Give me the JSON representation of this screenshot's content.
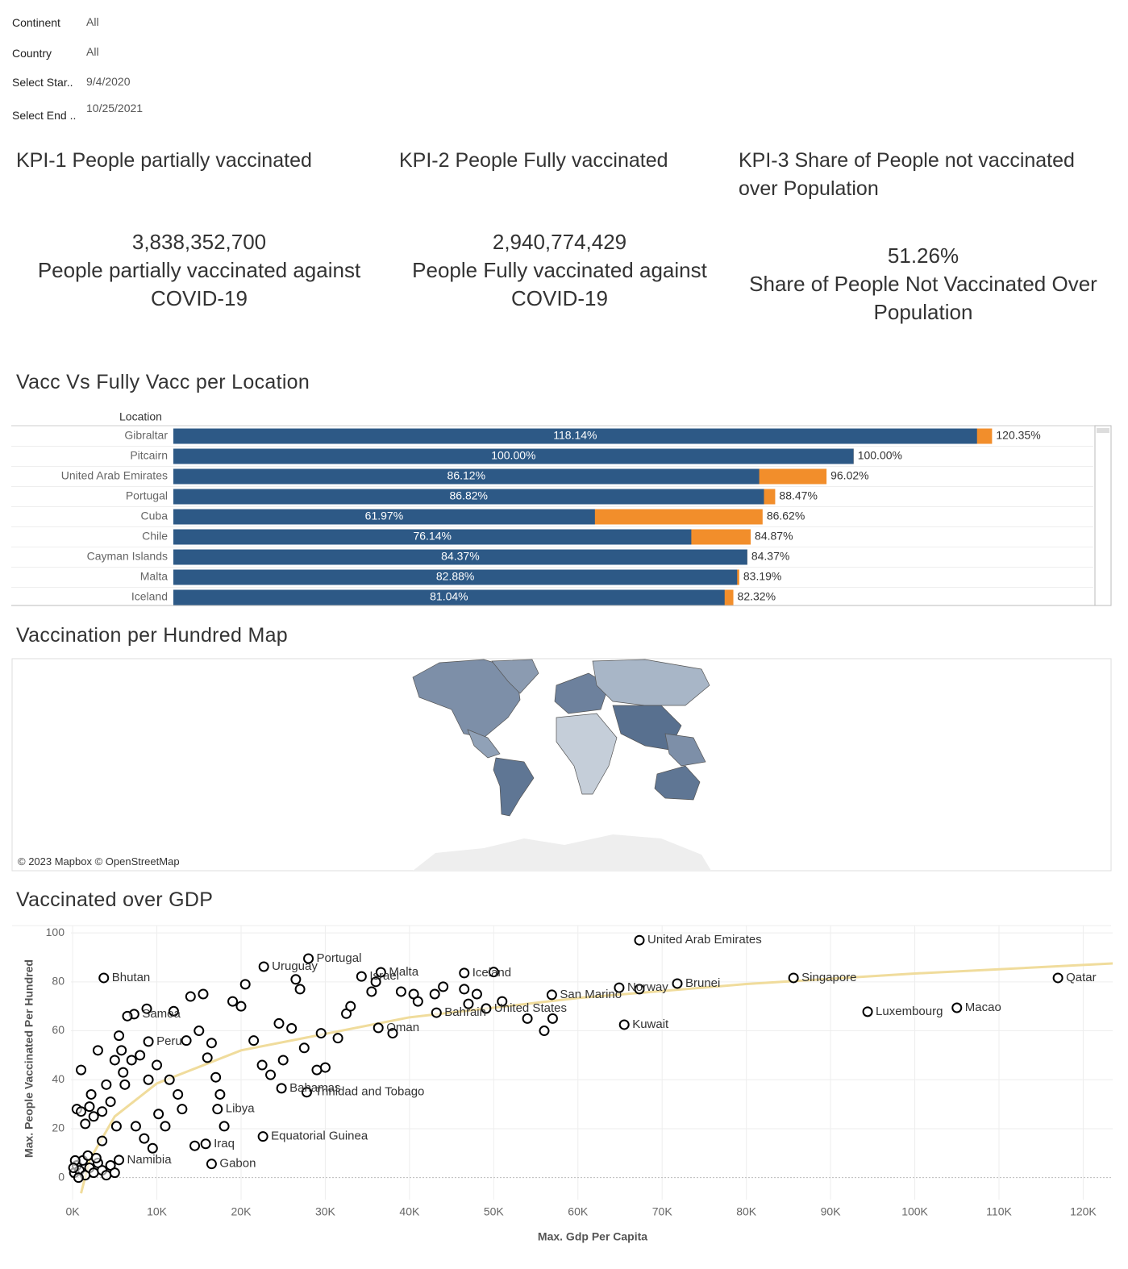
{
  "filters": [
    {
      "label": "Continent",
      "value": "All"
    },
    {
      "label": "Country",
      "value": "All"
    },
    {
      "label": "Select Star..",
      "value": "9/4/2020"
    },
    {
      "label": "Select End ..",
      "value": "10/25/2021"
    }
  ],
  "kpis": [
    {
      "title": "KPI-1 People partially vaccinated",
      "value": "3,838,352,700",
      "caption": "People partially vaccinated against COVID-19"
    },
    {
      "title": "KPI-2 People Fully vaccinated",
      "value": "2,940,774,429",
      "caption": "People Fully vaccinated against COVID-19"
    },
    {
      "title": "KPI-3 Share of People not vaccinated over Population",
      "value": "51.26%",
      "caption": "Share of People Not Vaccinated Over Population"
    }
  ],
  "map": {
    "title": "Vaccination per Hundred Map",
    "attribution": "© 2023 Mapbox © OpenStreetMap"
  },
  "chart_data": [
    {
      "type": "bar",
      "title": "Vacc Vs Fully Vacc per Location",
      "axis_header": "Location",
      "categories": [
        "Gibraltar",
        "Pitcairn",
        "United Arab Emirates",
        "Portugal",
        "Cuba",
        "Chile",
        "Cayman Islands",
        "Malta",
        "Iceland"
      ],
      "series": [
        {
          "color": "#f28e2b",
          "values": [
            120.35,
            100.0,
            96.02,
            88.47,
            86.62,
            84.87,
            84.37,
            83.19,
            82.32
          ],
          "value_labels": [
            "120.35%",
            "100.00%",
            "96.02%",
            "88.47%",
            "86.62%",
            "84.87%",
            "84.37%",
            "83.19%",
            "82.32%"
          ]
        },
        {
          "color": "#2d5986",
          "values": [
            118.14,
            100.0,
            86.12,
            86.82,
            61.97,
            76.14,
            84.37,
            82.88,
            81.04
          ],
          "value_labels": [
            "118.14%",
            "100.00%",
            "86.12%",
            "86.82%",
            "61.97%",
            "76.14%",
            "84.37%",
            "82.88%",
            "81.04%"
          ]
        }
      ],
      "xlim": [
        0,
        135
      ]
    },
    {
      "type": "scatter",
      "title": "Vaccinated over GDP",
      "x_label": "Max. Gdp Per Capita",
      "y_label": "Max. People Vaccinated Per Hundred",
      "xlim": [
        -200,
        123500
      ],
      "ylim": [
        -9,
        103
      ],
      "grid": true,
      "color": "#000000",
      "xticks": [
        {
          "value": 0,
          "label": "0K"
        },
        {
          "value": 10000,
          "label": "10K"
        },
        {
          "value": 20000,
          "label": "20K"
        },
        {
          "value": 30000,
          "label": "30K"
        },
        {
          "value": 40000,
          "label": "40K"
        },
        {
          "value": 50000,
          "label": "50K"
        },
        {
          "value": 60000,
          "label": "60K"
        },
        {
          "value": 70000,
          "label": "70K"
        },
        {
          "value": 80000,
          "label": "80K"
        },
        {
          "value": 90000,
          "label": "90K"
        },
        {
          "value": 100000,
          "label": "100K"
        },
        {
          "value": 110000,
          "label": "110K"
        },
        {
          "value": 120000,
          "label": "120K"
        }
      ],
      "yticks": [
        0,
        20,
        40,
        60,
        80,
        100
      ],
      "x": [
        67300,
        117000,
        85600,
        71800,
        64900,
        65500,
        94400,
        105000,
        56900,
        49100,
        46500,
        36600,
        28000,
        34300,
        43200,
        36300,
        22700,
        3700,
        7300,
        9000,
        27800,
        24800,
        17200,
        22600,
        15800,
        16500,
        5500,
        67300,
        1000,
        3000,
        500,
        1000,
        1500,
        2000,
        2200,
        2500,
        3500,
        3500,
        4000,
        4500,
        5000,
        5200,
        5500,
        5800,
        6000,
        6200,
        6500,
        7000,
        7500,
        8000,
        8500,
        8800,
        9000,
        9500,
        10000,
        10200,
        11000,
        11500,
        12000,
        12500,
        13000,
        13500,
        14000,
        14500,
        15000,
        15500,
        16000,
        16500,
        17000,
        17500,
        18000,
        19000,
        20000,
        20500,
        21500,
        22500,
        23500,
        24500,
        25000,
        26000,
        26500,
        27000,
        27500,
        29000,
        29500,
        30000,
        31500,
        32500,
        33000,
        35500,
        36000,
        38000,
        39000,
        40500,
        41000,
        43000,
        44000,
        46500,
        47000,
        48000,
        50000,
        51000,
        54000,
        56000,
        57000,
        200,
        500,
        800,
        1200,
        1500,
        2000,
        2500,
        3000,
        3500,
        4000,
        4500,
        5000,
        300,
        700,
        1800,
        2800,
        100
      ],
      "values": [
        97,
        81.6,
        81.6,
        79.3,
        77.6,
        62.5,
        67.8,
        69.4,
        74.7,
        69.1,
        83.6,
        83.9,
        89.5,
        82.2,
        67.4,
        61.2,
        86.2,
        81.6,
        66.8,
        55.6,
        34.9,
        36.5,
        28,
        16.8,
        13.8,
        5.6,
        7.2,
        77,
        44,
        52,
        28,
        27,
        22,
        29,
        34,
        25,
        27,
        15,
        38,
        31,
        48,
        21,
        58,
        52,
        43,
        38,
        66,
        48,
        21,
        50,
        16,
        69,
        40,
        12,
        46,
        26,
        21,
        40,
        68,
        34,
        28,
        56,
        74,
        13,
        60,
        75,
        49,
        55,
        41,
        34,
        21,
        72,
        70,
        79,
        56,
        46,
        42,
        63,
        48,
        61,
        81,
        77,
        53,
        44,
        59,
        45,
        57,
        67,
        70,
        76,
        80,
        59,
        76,
        75,
        72,
        75,
        78,
        77,
        71,
        75,
        84,
        72,
        65,
        60,
        65,
        2,
        5,
        3,
        7,
        1,
        4,
        2,
        6,
        3,
        1,
        5,
        2,
        7,
        0,
        9,
        8,
        4
      ],
      "labels": [
        "United Arab Emirates",
        "Qatar",
        "Singapore",
        "Brunei",
        "Norway",
        "Kuwait",
        "Luxembourg",
        "Macao",
        "San Marino",
        "United States",
        "Iceland",
        "Malta",
        "Portugal",
        "Israel",
        "Bahrain",
        "Oman",
        "Uruguay",
        "Bhutan",
        "Samoa",
        "Peru",
        "Trinidad and Tobago",
        "Bahamas",
        "Libya",
        "Equatorial Guinea",
        "Iraq",
        "Gabon",
        "Namibia",
        null,
        null,
        null,
        null,
        null,
        null,
        null,
        null,
        null,
        null,
        null,
        null,
        null,
        null,
        null,
        null,
        null,
        null,
        null,
        null,
        null,
        null,
        null,
        null,
        null,
        null,
        null,
        null,
        null,
        null,
        null,
        null,
        null,
        null,
        null,
        null,
        null,
        null,
        null,
        null,
        null,
        null,
        null,
        null,
        null,
        null,
        null,
        null,
        null,
        null,
        null,
        null,
        null,
        null,
        null,
        null,
        null,
        null,
        null,
        null,
        null,
        null,
        null,
        null,
        null,
        null,
        null,
        null,
        null,
        null,
        null,
        null,
        null,
        null,
        null,
        null,
        null,
        null,
        null,
        null,
        null,
        null,
        null,
        null,
        null,
        null,
        null,
        null,
        null,
        null,
        null,
        null
      ],
      "trend_line": {
        "color": "#f0dc9c",
        "x": [
          1000,
          2000,
          5000,
          10000,
          20000,
          40000,
          60000,
          80000,
          100000,
          123500
        ],
        "y": [
          -6.4,
          7.1,
          25.0,
          38.5,
          52.0,
          65.5,
          73.4,
          79.1,
          83.4,
          87.5
        ]
      }
    }
  ]
}
